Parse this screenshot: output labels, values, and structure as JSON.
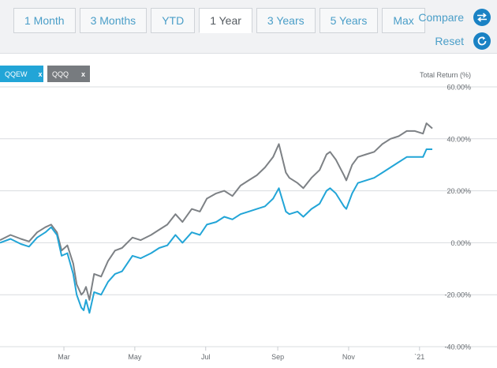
{
  "tabs": [
    {
      "label": "1 Month",
      "active": false
    },
    {
      "label": "3 Months",
      "active": false
    },
    {
      "label": "YTD",
      "active": false
    },
    {
      "label": "1 Year",
      "active": true
    },
    {
      "label": "3 Years",
      "active": false
    },
    {
      "label": "5 Years",
      "active": false
    },
    {
      "label": "Max",
      "active": false
    }
  ],
  "actions": {
    "compare_label": "Compare",
    "reset_label": "Reset",
    "compare_icon": "swap-arrows-icon",
    "reset_icon": "refresh-icon"
  },
  "chips": [
    {
      "label": "QQEW",
      "remove": "x",
      "color": "#22a5d7"
    },
    {
      "label": "QQQ",
      "remove": "x",
      "color": "#777b7f"
    }
  ],
  "chart_data": {
    "type": "line",
    "ylabel": "Total Return (%)",
    "ylim": [
      -40,
      60
    ],
    "yticks": [
      "60.00%",
      "40.00%",
      "20.00%",
      "0.00%",
      "-20.00%",
      "-40.00%"
    ],
    "ytick_values": [
      60,
      40,
      20,
      0,
      -20,
      -40
    ],
    "xlim": [
      "2020-01-06",
      "2021-01-12"
    ],
    "xticks": [
      {
        "label": "Mar",
        "date": "2020-03-01"
      },
      {
        "label": "May",
        "date": "2020-05-01"
      },
      {
        "label": "Jul",
        "date": "2020-07-01"
      },
      {
        "label": "Sep",
        "date": "2020-09-01"
      },
      {
        "label": "Nov",
        "date": "2020-11-01"
      },
      {
        "label": "`21",
        "date": "2021-01-01"
      }
    ],
    "grid": true,
    "series": [
      {
        "name": "QQEW",
        "color": "#22a5d7",
        "points": [
          [
            "2020-01-06",
            0
          ],
          [
            "2020-01-15",
            1.5
          ],
          [
            "2020-01-24",
            -0.5
          ],
          [
            "2020-01-31",
            -1.5
          ],
          [
            "2020-02-07",
            2
          ],
          [
            "2020-02-14",
            4
          ],
          [
            "2020-02-19",
            6
          ],
          [
            "2020-02-24",
            3
          ],
          [
            "2020-02-28",
            -5
          ],
          [
            "2020-03-04",
            -4
          ],
          [
            "2020-03-09",
            -12
          ],
          [
            "2020-03-12",
            -20
          ],
          [
            "2020-03-16",
            -25
          ],
          [
            "2020-03-18",
            -26
          ],
          [
            "2020-03-20",
            -22
          ],
          [
            "2020-03-23",
            -27
          ],
          [
            "2020-03-27",
            -19
          ],
          [
            "2020-04-02",
            -20
          ],
          [
            "2020-04-08",
            -15
          ],
          [
            "2020-04-14",
            -12
          ],
          [
            "2020-04-20",
            -11
          ],
          [
            "2020-04-29",
            -5
          ],
          [
            "2020-05-06",
            -6
          ],
          [
            "2020-05-15",
            -4
          ],
          [
            "2020-05-22",
            -2
          ],
          [
            "2020-05-29",
            -1
          ],
          [
            "2020-06-05",
            3
          ],
          [
            "2020-06-11",
            0
          ],
          [
            "2020-06-19",
            4
          ],
          [
            "2020-06-26",
            3
          ],
          [
            "2020-07-02",
            7
          ],
          [
            "2020-07-10",
            8
          ],
          [
            "2020-07-17",
            10
          ],
          [
            "2020-07-24",
            9
          ],
          [
            "2020-07-31",
            11
          ],
          [
            "2020-08-07",
            12
          ],
          [
            "2020-08-14",
            13
          ],
          [
            "2020-08-21",
            14
          ],
          [
            "2020-08-28",
            17
          ],
          [
            "2020-09-02",
            21
          ],
          [
            "2020-09-08",
            12
          ],
          [
            "2020-09-11",
            11
          ],
          [
            "2020-09-18",
            12
          ],
          [
            "2020-09-23",
            10
          ],
          [
            "2020-09-30",
            13
          ],
          [
            "2020-10-07",
            15
          ],
          [
            "2020-10-13",
            20
          ],
          [
            "2020-10-16",
            21
          ],
          [
            "2020-10-21",
            19
          ],
          [
            "2020-10-28",
            14
          ],
          [
            "2020-10-30",
            13
          ],
          [
            "2020-11-04",
            19
          ],
          [
            "2020-11-09",
            23
          ],
          [
            "2020-11-16",
            24
          ],
          [
            "2020-11-23",
            25
          ],
          [
            "2020-11-30",
            27
          ],
          [
            "2020-12-07",
            29
          ],
          [
            "2020-12-14",
            31
          ],
          [
            "2020-12-21",
            33
          ],
          [
            "2020-12-28",
            33
          ],
          [
            "2021-01-04",
            33
          ],
          [
            "2021-01-07",
            36
          ],
          [
            "2021-01-12",
            36
          ]
        ]
      },
      {
        "name": "QQQ",
        "color": "#7d8185",
        "points": [
          [
            "2020-01-06",
            1
          ],
          [
            "2020-01-15",
            3
          ],
          [
            "2020-01-24",
            1.5
          ],
          [
            "2020-01-31",
            0.5
          ],
          [
            "2020-02-07",
            4
          ],
          [
            "2020-02-14",
            6
          ],
          [
            "2020-02-19",
            7
          ],
          [
            "2020-02-24",
            4
          ],
          [
            "2020-02-28",
            -3
          ],
          [
            "2020-03-04",
            -1
          ],
          [
            "2020-03-09",
            -8
          ],
          [
            "2020-03-12",
            -16
          ],
          [
            "2020-03-16",
            -20
          ],
          [
            "2020-03-18",
            -19
          ],
          [
            "2020-03-20",
            -17
          ],
          [
            "2020-03-23",
            -22
          ],
          [
            "2020-03-27",
            -12
          ],
          [
            "2020-04-02",
            -13
          ],
          [
            "2020-04-08",
            -7
          ],
          [
            "2020-04-14",
            -3
          ],
          [
            "2020-04-20",
            -2
          ],
          [
            "2020-04-29",
            2
          ],
          [
            "2020-05-06",
            1
          ],
          [
            "2020-05-15",
            3
          ],
          [
            "2020-05-22",
            5
          ],
          [
            "2020-05-29",
            7
          ],
          [
            "2020-06-05",
            11
          ],
          [
            "2020-06-11",
            8
          ],
          [
            "2020-06-19",
            13
          ],
          [
            "2020-06-26",
            12
          ],
          [
            "2020-07-02",
            17
          ],
          [
            "2020-07-10",
            19
          ],
          [
            "2020-07-17",
            20
          ],
          [
            "2020-07-24",
            18
          ],
          [
            "2020-07-31",
            22
          ],
          [
            "2020-08-07",
            24
          ],
          [
            "2020-08-14",
            26
          ],
          [
            "2020-08-21",
            29
          ],
          [
            "2020-08-28",
            33
          ],
          [
            "2020-09-02",
            38
          ],
          [
            "2020-09-08",
            27
          ],
          [
            "2020-09-11",
            25
          ],
          [
            "2020-09-18",
            23
          ],
          [
            "2020-09-23",
            21
          ],
          [
            "2020-09-30",
            25
          ],
          [
            "2020-10-07",
            28
          ],
          [
            "2020-10-13",
            34
          ],
          [
            "2020-10-16",
            35
          ],
          [
            "2020-10-21",
            32
          ],
          [
            "2020-10-28",
            26
          ],
          [
            "2020-10-30",
            24
          ],
          [
            "2020-11-04",
            30
          ],
          [
            "2020-11-09",
            33
          ],
          [
            "2020-11-16",
            34
          ],
          [
            "2020-11-23",
            35
          ],
          [
            "2020-11-30",
            38
          ],
          [
            "2020-12-07",
            40
          ],
          [
            "2020-12-14",
            41
          ],
          [
            "2020-12-21",
            43
          ],
          [
            "2020-12-28",
            43
          ],
          [
            "2021-01-04",
            42
          ],
          [
            "2021-01-07",
            46
          ],
          [
            "2021-01-12",
            44
          ]
        ]
      }
    ]
  }
}
